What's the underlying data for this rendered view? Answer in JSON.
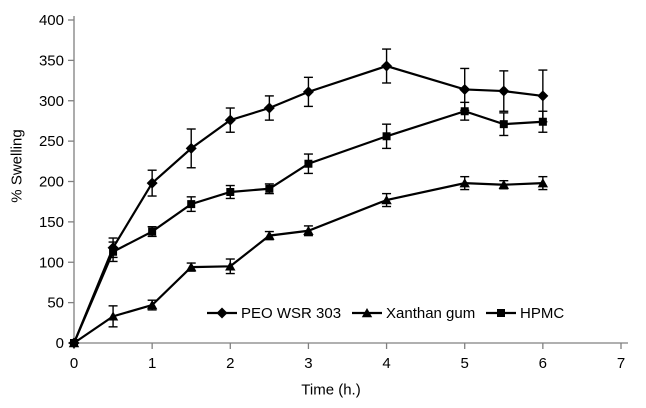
{
  "figure": {
    "background_color": "#ffffff",
    "axis_color": "#808080",
    "text_color": "#000000",
    "series_color": "#000000"
  },
  "chart_data": {
    "type": "line",
    "title": "",
    "xlabel": "Time (h.)",
    "ylabel": "% Swelling",
    "xlim": [
      0,
      7
    ],
    "ylim": [
      0,
      400
    ],
    "xticks": [
      0,
      1,
      2,
      3,
      4,
      5,
      6,
      7
    ],
    "yticks": [
      0,
      50,
      100,
      150,
      200,
      250,
      300,
      350,
      400
    ],
    "grid": false,
    "error_bars": true,
    "legend_position": "inside-bottom-center",
    "x": [
      0,
      0.5,
      1,
      1.5,
      2,
      2.5,
      3,
      4,
      5,
      5.5,
      6
    ],
    "series": [
      {
        "name": "PEO WSR 303",
        "marker": "diamond",
        "values": [
          0,
          118,
          198,
          241,
          276,
          291,
          311,
          343,
          314,
          312,
          306
        ],
        "errors": [
          0,
          12,
          16,
          24,
          15,
          15,
          18,
          21,
          26,
          25,
          32
        ]
      },
      {
        "name": "Xanthan gum",
        "marker": "triangle",
        "values": [
          0,
          33,
          47,
          94,
          95,
          133,
          139,
          177,
          198,
          196,
          198
        ],
        "errors": [
          0,
          13,
          6,
          5,
          9,
          5,
          6,
          8,
          8,
          5,
          8
        ]
      },
      {
        "name": "HPMC",
        "marker": "square",
        "values": [
          0,
          113,
          138,
          172,
          187,
          191,
          222,
          256,
          287,
          271,
          274
        ],
        "errors": [
          0,
          12,
          6,
          9,
          8,
          6,
          12,
          15,
          11,
          14,
          13
        ]
      }
    ]
  }
}
